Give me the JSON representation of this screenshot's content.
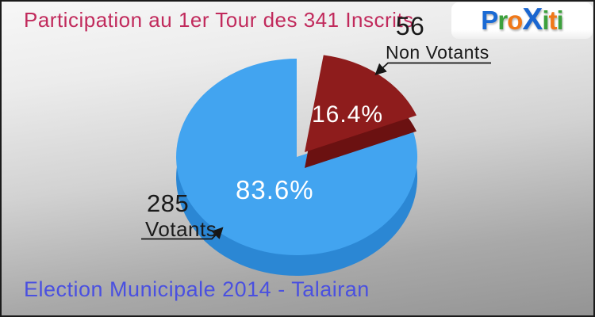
{
  "header": {
    "title": "Participation au 1er Tour des 341 Inscrits"
  },
  "footer": {
    "title": "Election Municipale 2014 - Talairan"
  },
  "logo": {
    "name": "Proxiti",
    "letters": [
      {
        "ch": "P",
        "color": "#1a6ad4"
      },
      {
        "ch": "r",
        "color": "#3da13d"
      },
      {
        "ch": "o",
        "color": "#f07818"
      },
      {
        "ch": "X",
        "color": "#1a66d0"
      },
      {
        "ch": "i",
        "color": "#3da13d"
      },
      {
        "ch": "t",
        "color": "#f07818"
      },
      {
        "ch": "i",
        "color": "#3da13d"
      }
    ]
  },
  "chart_data": {
    "type": "pie",
    "title": "Participation au 1er Tour des 341 Inscrits",
    "total_inscrits": 341,
    "legend_position": "callouts",
    "slices": [
      {
        "label": "Votants",
        "count": 285,
        "pct": 83.6,
        "pct_label": "83.6%",
        "color": "#42a4f0",
        "side_color": "#2b87d4",
        "explode": false
      },
      {
        "label": "Non Votants",
        "count": 56,
        "pct": 16.4,
        "pct_label": "16.4%",
        "color": "#8e1c1c",
        "side_color": "#6b1111",
        "explode": true
      }
    ]
  }
}
